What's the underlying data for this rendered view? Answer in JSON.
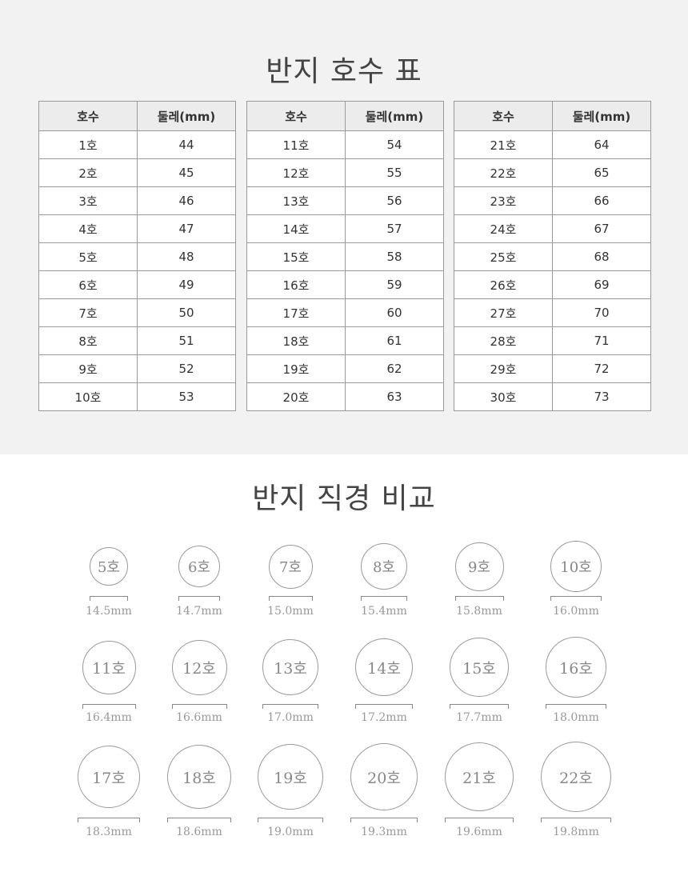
{
  "size_chart": {
    "title": "반지 호수 표",
    "headers": [
      "호수",
      "둘레(mm)"
    ],
    "tables": [
      [
        [
          "1호",
          "44"
        ],
        [
          "2호",
          "45"
        ],
        [
          "3호",
          "46"
        ],
        [
          "4호",
          "47"
        ],
        [
          "5호",
          "48"
        ],
        [
          "6호",
          "49"
        ],
        [
          "7호",
          "50"
        ],
        [
          "8호",
          "51"
        ],
        [
          "9호",
          "52"
        ],
        [
          "10호",
          "53"
        ]
      ],
      [
        [
          "11호",
          "54"
        ],
        [
          "12호",
          "55"
        ],
        [
          "13호",
          "56"
        ],
        [
          "14호",
          "57"
        ],
        [
          "15호",
          "58"
        ],
        [
          "16호",
          "59"
        ],
        [
          "17호",
          "60"
        ],
        [
          "18호",
          "61"
        ],
        [
          "19호",
          "62"
        ],
        [
          "20호",
          "63"
        ]
      ],
      [
        [
          "21호",
          "64"
        ],
        [
          "22호",
          "65"
        ],
        [
          "23호",
          "66"
        ],
        [
          "24호",
          "67"
        ],
        [
          "25호",
          "68"
        ],
        [
          "26호",
          "69"
        ],
        [
          "27호",
          "70"
        ],
        [
          "28호",
          "71"
        ],
        [
          "29호",
          "72"
        ],
        [
          "30호",
          "73"
        ]
      ]
    ]
  },
  "diameter": {
    "title": "반지 직경 비교",
    "rings": [
      {
        "label": "5호",
        "diameter": "14.5mm"
      },
      {
        "label": "6호",
        "diameter": "14.7mm"
      },
      {
        "label": "7호",
        "diameter": "15.0mm"
      },
      {
        "label": "8호",
        "diameter": "15.4mm"
      },
      {
        "label": "9호",
        "diameter": "15.8mm"
      },
      {
        "label": "10호",
        "diameter": "16.0mm"
      },
      {
        "label": "11호",
        "diameter": "16.4mm"
      },
      {
        "label": "12호",
        "diameter": "16.6mm"
      },
      {
        "label": "13호",
        "diameter": "17.0mm"
      },
      {
        "label": "14호",
        "diameter": "17.2mm"
      },
      {
        "label": "15호",
        "diameter": "17.7mm"
      },
      {
        "label": "16호",
        "diameter": "18.0mm"
      },
      {
        "label": "17호",
        "diameter": "18.3mm"
      },
      {
        "label": "18호",
        "diameter": "18.6mm"
      },
      {
        "label": "19호",
        "diameter": "19.0mm"
      },
      {
        "label": "20호",
        "diameter": "19.3mm"
      },
      {
        "label": "21호",
        "diameter": "19.6mm"
      },
      {
        "label": "22호",
        "diameter": "19.8mm"
      }
    ]
  }
}
